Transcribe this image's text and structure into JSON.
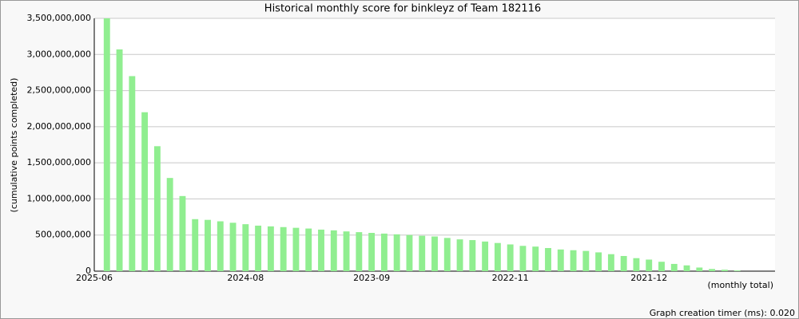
{
  "chart_data": {
    "type": "bar",
    "title": "Historical monthly score for binkleyz of Team 182116",
    "y_label": "(cumulative points completed)",
    "x_note": "(monthly total)",
    "footer": "Graph creation timer (ms): 0.020",
    "color": "#90ee90",
    "grid": true,
    "categories": [
      "2025-06",
      null,
      null,
      null,
      null,
      null,
      null,
      null,
      null,
      null,
      null,
      null,
      "2024-08",
      null,
      null,
      null,
      null,
      null,
      null,
      null,
      null,
      null,
      "2023-09",
      null,
      null,
      null,
      null,
      null,
      null,
      null,
      null,
      null,
      null,
      "2022-11",
      null,
      null,
      null,
      null,
      null,
      null,
      null,
      null,
      null,
      null,
      "2021-12",
      null,
      null,
      null,
      null,
      null,
      null,
      null,
      null,
      null
    ],
    "values": [
      3500000000,
      3070000000,
      2700000000,
      2200000000,
      1730000000,
      1290000000,
      1040000000,
      720000000,
      710000000,
      690000000,
      670000000,
      650000000,
      630000000,
      620000000,
      610000000,
      600000000,
      590000000,
      575000000,
      565000000,
      550000000,
      540000000,
      530000000,
      520000000,
      510000000,
      500000000,
      490000000,
      480000000,
      460000000,
      440000000,
      430000000,
      410000000,
      390000000,
      370000000,
      350000000,
      340000000,
      320000000,
      300000000,
      290000000,
      280000000,
      260000000,
      235000000,
      210000000,
      180000000,
      160000000,
      130000000,
      100000000,
      80000000,
      50000000,
      30000000,
      20000000,
      10000000,
      0,
      0,
      0
    ],
    "ylim": [
      0,
      3500000000
    ],
    "yticks": [
      0,
      {
        "value": 500000000,
        "label": "500,000,000"
      },
      {
        "value": 1000000000,
        "label": "1,000,000,000"
      },
      {
        "value": 1500000000,
        "label": "1,500,000,000"
      },
      {
        "value": 2000000000,
        "label": "2,000,000,000"
      },
      {
        "value": 2500000000,
        "label": "2,500,000,000"
      },
      {
        "value": 3000000000,
        "label": "3,000,000,000"
      },
      {
        "value": 3500000000,
        "label": "3,500,000,000"
      }
    ]
  }
}
